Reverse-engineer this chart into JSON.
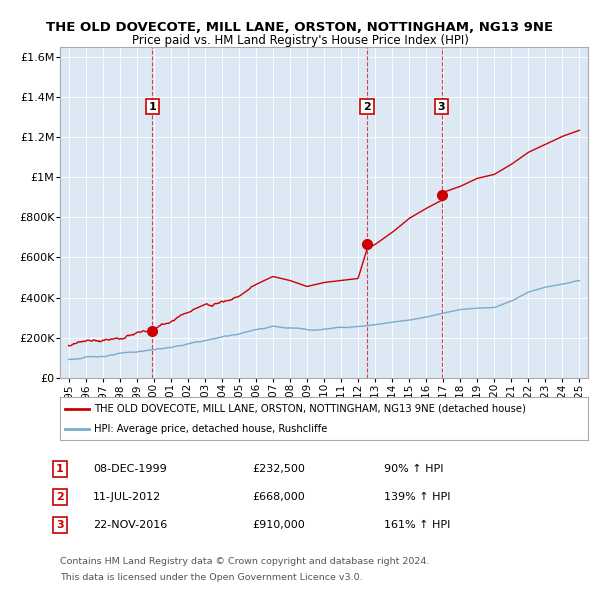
{
  "title": "THE OLD DOVECOTE, MILL LANE, ORSTON, NOTTINGHAM, NG13 9NE",
  "subtitle": "Price paid vs. HM Land Registry's House Price Index (HPI)",
  "property_label": "THE OLD DOVECOTE, MILL LANE, ORSTON, NOTTINGHAM, NG13 9NE (detached house)",
  "hpi_label": "HPI: Average price, detached house, Rushcliffe",
  "property_color": "#cc0000",
  "hpi_color": "#7aaacc",
  "sale_points": [
    {
      "year": 1999.92,
      "price": 232500,
      "label": "1",
      "date": "08-DEC-1999",
      "price_str": "£232,500",
      "pct": "90% ↑ HPI"
    },
    {
      "year": 2012.53,
      "price": 668000,
      "label": "2",
      "date": "11-JUL-2012",
      "price_str": "£668,000",
      "pct": "139% ↑ HPI"
    },
    {
      "year": 2016.9,
      "price": 910000,
      "label": "3",
      "date": "22-NOV-2016",
      "price_str": "£910,000",
      "pct": "161% ↑ HPI"
    }
  ],
  "ylim": [
    0,
    1650000
  ],
  "yticks": [
    0,
    200000,
    400000,
    600000,
    800000,
    1000000,
    1200000,
    1400000,
    1600000
  ],
  "ytick_labels": [
    "£0",
    "£200K",
    "£400K",
    "£600K",
    "£800K",
    "£1M",
    "£1.2M",
    "£1.4M",
    "£1.6M"
  ],
  "xlim_start": 1994.5,
  "xlim_end": 2025.5,
  "xtick_years": [
    1995,
    1996,
    1997,
    1998,
    1999,
    2000,
    2001,
    2002,
    2003,
    2004,
    2005,
    2006,
    2007,
    2008,
    2009,
    2010,
    2011,
    2012,
    2013,
    2014,
    2015,
    2016,
    2017,
    2018,
    2019,
    2020,
    2021,
    2022,
    2023,
    2024,
    2025
  ],
  "footer_line1": "Contains HM Land Registry data © Crown copyright and database right 2024.",
  "footer_line2": "This data is licensed under the Open Government Licence v3.0.",
  "background_color": "#ffffff",
  "plot_bg_color": "#dce9f5",
  "grid_color": "#ffffff"
}
